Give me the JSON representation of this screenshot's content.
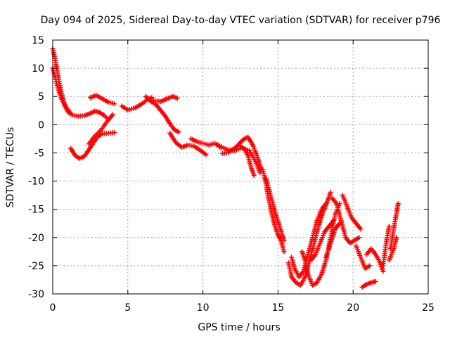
{
  "chart_data": {
    "type": "scatter",
    "title": "Day 094 of 2025, Sidereal Day-to-day VTEC variation (SDTVAR) for receiver p796",
    "xlabel": "GPS time / hours",
    "ylabel": "SDTVAR / TECUs",
    "xlim": [
      0,
      25
    ],
    "ylim": [
      -30,
      15
    ],
    "x_ticks": [
      "0",
      "5",
      "10",
      "15",
      "20",
      "25"
    ],
    "y_ticks": [
      "15",
      "10",
      "5",
      "0",
      "-5",
      "-10",
      "-15",
      "-20",
      "-25",
      "-30"
    ],
    "grid": true,
    "marker": "plus",
    "color": "#ff0000",
    "series": [
      {
        "name": "s1",
        "points": [
          [
            0,
            13.5
          ],
          [
            0.2,
            11
          ],
          [
            0.4,
            8
          ],
          [
            0.6,
            5.5
          ],
          [
            0.8,
            3.5
          ],
          [
            1.0,
            2.3
          ],
          [
            1.3,
            1.7
          ],
          [
            1.7,
            1.5
          ],
          [
            2.1,
            1.6
          ],
          [
            2.5,
            2.0
          ],
          [
            2.8,
            2.4
          ],
          [
            3.1,
            2.2
          ],
          [
            3.4,
            1.7
          ],
          [
            3.6,
            1.2
          ]
        ]
      },
      {
        "name": "s2",
        "points": [
          [
            0,
            10
          ],
          [
            0.2,
            8
          ],
          [
            0.4,
            6
          ],
          [
            0.6,
            4.5
          ],
          [
            0.9,
            3
          ],
          [
            1.2,
            2
          ]
        ]
      },
      {
        "name": "s3",
        "points": [
          [
            1.2,
            -4.2
          ],
          [
            1.5,
            -5.5
          ],
          [
            1.8,
            -6
          ],
          [
            2.1,
            -5.6
          ],
          [
            2.4,
            -4.5
          ],
          [
            2.7,
            -3.2
          ],
          [
            3.0,
            -2.1
          ],
          [
            3.3,
            -1.6
          ],
          [
            3.7,
            -1.5
          ],
          [
            4.1,
            -1.4
          ]
        ]
      },
      {
        "name": "s4",
        "points": [
          [
            2.4,
            -3.4
          ],
          [
            2.8,
            -2.0
          ],
          [
            3.2,
            -1.0
          ],
          [
            3.6,
            0.5
          ],
          [
            4.0,
            1.8
          ]
        ]
      },
      {
        "name": "s5",
        "points": [
          [
            2.5,
            4.8
          ],
          [
            2.9,
            5.2
          ],
          [
            3.3,
            4.6
          ],
          [
            3.7,
            4.0
          ],
          [
            4.1,
            3.7
          ]
        ]
      },
      {
        "name": "s6",
        "points": [
          [
            4.6,
            3.3
          ],
          [
            5.0,
            2.6
          ],
          [
            5.5,
            3.0
          ],
          [
            6.0,
            3.8
          ],
          [
            6.3,
            4.5
          ],
          [
            6.6,
            4.8
          ]
        ]
      },
      {
        "name": "s7",
        "points": [
          [
            6.2,
            5.0
          ],
          [
            6.5,
            4.2
          ],
          [
            6.9,
            3.5
          ],
          [
            7.2,
            2.5
          ],
          [
            7.5,
            1.5
          ],
          [
            7.8,
            0.2
          ],
          [
            8.1,
            -0.9
          ],
          [
            8.4,
            -1.3
          ]
        ]
      },
      {
        "name": "s8",
        "points": [
          [
            6.7,
            4.3
          ],
          [
            7.2,
            4.1
          ],
          [
            7.6,
            4.6
          ],
          [
            8.0,
            5.0
          ],
          [
            8.3,
            4.7
          ]
        ]
      },
      {
        "name": "s9",
        "points": [
          [
            7.8,
            -1.5
          ],
          [
            8.2,
            -3.2
          ],
          [
            8.6,
            -4.0
          ],
          [
            9.0,
            -3.6
          ],
          [
            9.4,
            -3.8
          ],
          [
            9.8,
            -4.5
          ],
          [
            10.2,
            -5.3
          ]
        ]
      },
      {
        "name": "s10",
        "points": [
          [
            9.2,
            -2.5
          ],
          [
            9.6,
            -3.0
          ],
          [
            10.0,
            -3.3
          ],
          [
            10.4,
            -3.6
          ],
          [
            10.8,
            -3.3
          ],
          [
            11.2,
            -4.1
          ]
        ]
      },
      {
        "name": "s11",
        "points": [
          [
            11.0,
            -3.6
          ],
          [
            11.6,
            -4.4
          ],
          [
            12.1,
            -4.6
          ],
          [
            12.6,
            -4.1
          ],
          [
            13.1,
            -4.6
          ],
          [
            13.5,
            -6.5
          ],
          [
            13.8,
            -8.5
          ]
        ]
      },
      {
        "name": "s12",
        "points": [
          [
            11.3,
            -5.1
          ],
          [
            11.7,
            -4.9
          ],
          [
            12.2,
            -4.0
          ],
          [
            12.7,
            -2.6
          ],
          [
            13.0,
            -2.2
          ],
          [
            13.3,
            -3.5
          ],
          [
            13.6,
            -5.5
          ],
          [
            13.9,
            -8.0
          ]
        ]
      },
      {
        "name": "s13",
        "points": [
          [
            12.5,
            -3.8
          ],
          [
            12.8,
            -4.4
          ],
          [
            13.0,
            -5.5
          ],
          [
            13.2,
            -7.5
          ],
          [
            13.4,
            -9.0
          ]
        ]
      },
      {
        "name": "s14",
        "points": [
          [
            14.0,
            -8.0
          ],
          [
            14.2,
            -10.5
          ],
          [
            14.4,
            -13.5
          ],
          [
            14.6,
            -16
          ],
          [
            14.8,
            -18
          ],
          [
            15.0,
            -19.5
          ],
          [
            15.2,
            -20.5
          ],
          [
            15.4,
            -22.5
          ]
        ]
      },
      {
        "name": "s15",
        "points": [
          [
            14.2,
            -9.5
          ],
          [
            14.5,
            -12.5
          ],
          [
            14.8,
            -15.5
          ],
          [
            15.1,
            -18
          ],
          [
            15.4,
            -20.5
          ]
        ]
      },
      {
        "name": "s16",
        "points": [
          [
            15.7,
            -24.5
          ],
          [
            15.9,
            -27.0
          ],
          [
            16.2,
            -28.0
          ],
          [
            16.5,
            -28.5
          ],
          [
            16.8,
            -27.0
          ],
          [
            17.1,
            -24.0
          ],
          [
            17.4,
            -21.0
          ],
          [
            17.7,
            -18.0
          ],
          [
            18.0,
            -15.5
          ],
          [
            18.3,
            -13.5
          ],
          [
            18.5,
            -12.0
          ]
        ]
      },
      {
        "name": "s17",
        "points": [
          [
            15.9,
            -23.5
          ],
          [
            16.1,
            -25.5
          ],
          [
            16.4,
            -27.0
          ],
          [
            16.7,
            -26.0
          ],
          [
            17.0,
            -23.0
          ],
          [
            17.3,
            -20.0
          ],
          [
            17.6,
            -17.0
          ],
          [
            17.9,
            -15.0
          ],
          [
            18.2,
            -14.0
          ]
        ]
      },
      {
        "name": "s18",
        "points": [
          [
            16.6,
            -22.5
          ],
          [
            16.8,
            -24.0
          ],
          [
            17.0,
            -26.5
          ],
          [
            17.3,
            -28.5
          ],
          [
            17.6,
            -28.0
          ],
          [
            17.9,
            -26.5
          ],
          [
            18.2,
            -24.0
          ],
          [
            18.5,
            -20.0
          ],
          [
            18.8,
            -16.0
          ],
          [
            19.1,
            -14.0
          ]
        ]
      },
      {
        "name": "s19",
        "points": [
          [
            17.2,
            -24.0
          ],
          [
            17.5,
            -23.0
          ],
          [
            17.8,
            -21.0
          ],
          [
            18.1,
            -19.0
          ],
          [
            18.4,
            -18.0
          ],
          [
            18.7,
            -17.0
          ]
        ]
      },
      {
        "name": "s20",
        "points": [
          [
            18.2,
            -23.5
          ],
          [
            18.5,
            -21.0
          ],
          [
            18.8,
            -18.5
          ],
          [
            19.1,
            -17.5
          ]
        ]
      },
      {
        "name": "s21",
        "points": [
          [
            18.6,
            -13.0
          ],
          [
            18.9,
            -14.0
          ],
          [
            19.2,
            -17.0
          ],
          [
            19.5,
            -20.0
          ],
          [
            19.8,
            -21.0
          ],
          [
            20.1,
            -20.5
          ],
          [
            20.4,
            -20.0
          ]
        ]
      },
      {
        "name": "s22",
        "points": [
          [
            19.3,
            -12.5
          ],
          [
            19.6,
            -14.5
          ],
          [
            19.9,
            -16.5
          ],
          [
            20.2,
            -17.5
          ],
          [
            20.5,
            -18.5
          ]
        ]
      },
      {
        "name": "s23",
        "points": [
          [
            20.2,
            -21.5
          ],
          [
            20.5,
            -23.5
          ],
          [
            20.8,
            -25.5
          ],
          [
            21.1,
            -25.0
          ]
        ]
      },
      {
        "name": "s24",
        "points": [
          [
            20.9,
            -23.0
          ],
          [
            21.2,
            -22.0
          ],
          [
            21.5,
            -23.0
          ],
          [
            21.8,
            -24.5
          ],
          [
            22.0,
            -26.0
          ]
        ]
      },
      {
        "name": "s25",
        "points": [
          [
            20.6,
            -28.8
          ],
          [
            20.9,
            -28.3
          ],
          [
            21.2,
            -28.0
          ],
          [
            21.5,
            -27.8
          ]
        ]
      },
      {
        "name": "s26",
        "points": [
          [
            22.0,
            -25.0
          ],
          [
            22.2,
            -21.0
          ],
          [
            22.4,
            -18.0
          ]
        ]
      },
      {
        "name": "s27",
        "points": [
          [
            22.5,
            -22.0
          ],
          [
            22.7,
            -18.5
          ],
          [
            22.9,
            -15.5
          ],
          [
            23.0,
            -14.0
          ]
        ]
      },
      {
        "name": "s28",
        "points": [
          [
            22.4,
            -24.0
          ],
          [
            22.7,
            -22.0
          ],
          [
            22.9,
            -20.0
          ]
        ]
      }
    ]
  }
}
